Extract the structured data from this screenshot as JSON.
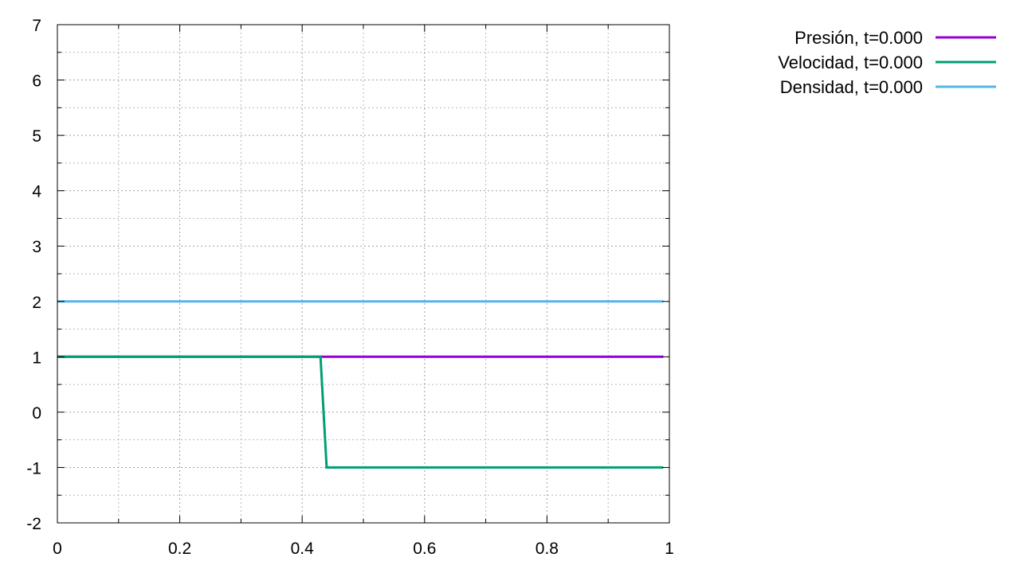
{
  "chart_data": {
    "type": "line",
    "title": "",
    "xlabel": "",
    "ylabel": "",
    "xlim": [
      0,
      1
    ],
    "ylim": [
      -2,
      7
    ],
    "grid": true,
    "legend_position": "top-right, outside plot",
    "x_ticks": [
      0,
      0.2,
      0.4,
      0.6,
      0.8,
      1
    ],
    "x_tick_labels": [
      "0",
      "0.2",
      "0.4",
      "0.6",
      "0.8",
      "1"
    ],
    "y_ticks": [
      -2,
      -1,
      0,
      1,
      2,
      3,
      4,
      5,
      6,
      7
    ],
    "y_tick_labels": [
      "-2",
      "-1",
      "0",
      "1",
      "2",
      "3",
      "4",
      "5",
      "6",
      "7"
    ],
    "series": [
      {
        "name": "Presión, t=0.000",
        "color": "#9400d3",
        "points": [
          [
            0,
            1
          ],
          [
            0.43,
            1
          ],
          [
            0.99,
            1
          ]
        ]
      },
      {
        "name": "Velocidad, t=0.000",
        "color": "#009e73",
        "points": [
          [
            0,
            1
          ],
          [
            0.43,
            1
          ],
          [
            0.44,
            -1
          ],
          [
            0.99,
            -1
          ]
        ]
      },
      {
        "name": "Densidad, t=0.000",
        "color": "#56b4e9",
        "points": [
          [
            0,
            2
          ],
          [
            0.99,
            2
          ]
        ]
      }
    ]
  }
}
